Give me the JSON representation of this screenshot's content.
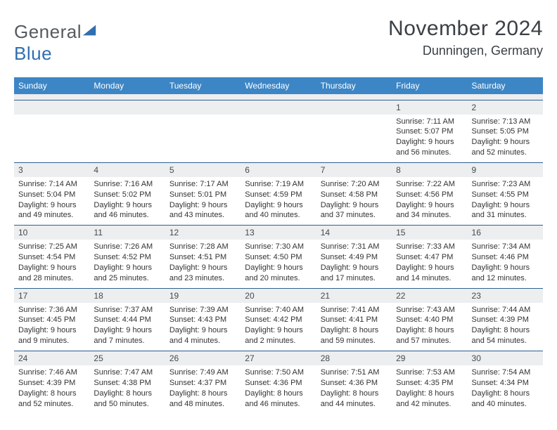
{
  "logo": {
    "text1": "General",
    "text2": "Blue",
    "triangle_color": "#2f6fb0"
  },
  "title": "November 2024",
  "location": "Dunningen, Germany",
  "header_bg": "#3d86c6",
  "header_fg": "#ffffff",
  "daynum_bg": "#eceeef",
  "row_border": "#2f5f8f",
  "weekdays": [
    "Sunday",
    "Monday",
    "Tuesday",
    "Wednesday",
    "Thursday",
    "Friday",
    "Saturday"
  ],
  "weeks": [
    [
      null,
      null,
      null,
      null,
      null,
      {
        "n": "1",
        "sunrise": "7:11 AM",
        "sunset": "5:07 PM",
        "dlh": "9",
        "dlm": "56"
      },
      {
        "n": "2",
        "sunrise": "7:13 AM",
        "sunset": "5:05 PM",
        "dlh": "9",
        "dlm": "52"
      }
    ],
    [
      {
        "n": "3",
        "sunrise": "7:14 AM",
        "sunset": "5:04 PM",
        "dlh": "9",
        "dlm": "49"
      },
      {
        "n": "4",
        "sunrise": "7:16 AM",
        "sunset": "5:02 PM",
        "dlh": "9",
        "dlm": "46"
      },
      {
        "n": "5",
        "sunrise": "7:17 AM",
        "sunset": "5:01 PM",
        "dlh": "9",
        "dlm": "43"
      },
      {
        "n": "6",
        "sunrise": "7:19 AM",
        "sunset": "4:59 PM",
        "dlh": "9",
        "dlm": "40"
      },
      {
        "n": "7",
        "sunrise": "7:20 AM",
        "sunset": "4:58 PM",
        "dlh": "9",
        "dlm": "37"
      },
      {
        "n": "8",
        "sunrise": "7:22 AM",
        "sunset": "4:56 PM",
        "dlh": "9",
        "dlm": "34"
      },
      {
        "n": "9",
        "sunrise": "7:23 AM",
        "sunset": "4:55 PM",
        "dlh": "9",
        "dlm": "31"
      }
    ],
    [
      {
        "n": "10",
        "sunrise": "7:25 AM",
        "sunset": "4:54 PM",
        "dlh": "9",
        "dlm": "28"
      },
      {
        "n": "11",
        "sunrise": "7:26 AM",
        "sunset": "4:52 PM",
        "dlh": "9",
        "dlm": "25"
      },
      {
        "n": "12",
        "sunrise": "7:28 AM",
        "sunset": "4:51 PM",
        "dlh": "9",
        "dlm": "23"
      },
      {
        "n": "13",
        "sunrise": "7:30 AM",
        "sunset": "4:50 PM",
        "dlh": "9",
        "dlm": "20"
      },
      {
        "n": "14",
        "sunrise": "7:31 AM",
        "sunset": "4:49 PM",
        "dlh": "9",
        "dlm": "17"
      },
      {
        "n": "15",
        "sunrise": "7:33 AM",
        "sunset": "4:47 PM",
        "dlh": "9",
        "dlm": "14"
      },
      {
        "n": "16",
        "sunrise": "7:34 AM",
        "sunset": "4:46 PM",
        "dlh": "9",
        "dlm": "12"
      }
    ],
    [
      {
        "n": "17",
        "sunrise": "7:36 AM",
        "sunset": "4:45 PM",
        "dlh": "9",
        "dlm": "9"
      },
      {
        "n": "18",
        "sunrise": "7:37 AM",
        "sunset": "4:44 PM",
        "dlh": "9",
        "dlm": "7"
      },
      {
        "n": "19",
        "sunrise": "7:39 AM",
        "sunset": "4:43 PM",
        "dlh": "9",
        "dlm": "4"
      },
      {
        "n": "20",
        "sunrise": "7:40 AM",
        "sunset": "4:42 PM",
        "dlh": "9",
        "dlm": "2"
      },
      {
        "n": "21",
        "sunrise": "7:41 AM",
        "sunset": "4:41 PM",
        "dlh": "8",
        "dlm": "59"
      },
      {
        "n": "22",
        "sunrise": "7:43 AM",
        "sunset": "4:40 PM",
        "dlh": "8",
        "dlm": "57"
      },
      {
        "n": "23",
        "sunrise": "7:44 AM",
        "sunset": "4:39 PM",
        "dlh": "8",
        "dlm": "54"
      }
    ],
    [
      {
        "n": "24",
        "sunrise": "7:46 AM",
        "sunset": "4:39 PM",
        "dlh": "8",
        "dlm": "52"
      },
      {
        "n": "25",
        "sunrise": "7:47 AM",
        "sunset": "4:38 PM",
        "dlh": "8",
        "dlm": "50"
      },
      {
        "n": "26",
        "sunrise": "7:49 AM",
        "sunset": "4:37 PM",
        "dlh": "8",
        "dlm": "48"
      },
      {
        "n": "27",
        "sunrise": "7:50 AM",
        "sunset": "4:36 PM",
        "dlh": "8",
        "dlm": "46"
      },
      {
        "n": "28",
        "sunrise": "7:51 AM",
        "sunset": "4:36 PM",
        "dlh": "8",
        "dlm": "44"
      },
      {
        "n": "29",
        "sunrise": "7:53 AM",
        "sunset": "4:35 PM",
        "dlh": "8",
        "dlm": "42"
      },
      {
        "n": "30",
        "sunrise": "7:54 AM",
        "sunset": "4:34 PM",
        "dlh": "8",
        "dlm": "40"
      }
    ]
  ],
  "labels": {
    "sunrise": "Sunrise:",
    "sunset": "Sunset:",
    "daylight": "Daylight:",
    "hours": "hours",
    "and": "and",
    "minutes": "minutes."
  },
  "style": {
    "cell_font_size": 11,
    "header_font_size": 12,
    "title_font_size": 30,
    "location_font_size": 18
  }
}
